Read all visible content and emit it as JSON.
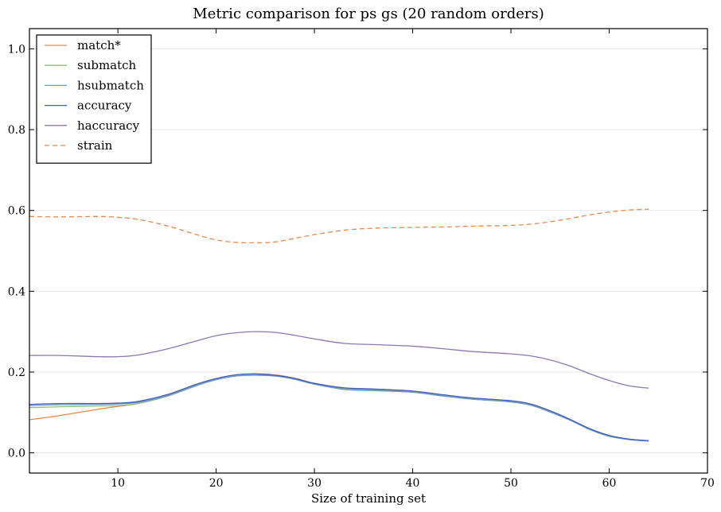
{
  "chart_data": {
    "type": "line",
    "title": "Metric comparison for ps gs (20 random orders)",
    "xlabel": "Size of training set",
    "ylabel": "",
    "xlim": [
      1,
      70
    ],
    "ylim": [
      -0.05,
      1.05
    ],
    "xticks": [
      10,
      20,
      30,
      40,
      50,
      60,
      70
    ],
    "yticks": [
      0.0,
      0.2,
      0.4,
      0.6,
      0.8,
      1.0
    ],
    "xtick_labels": [
      "10",
      "20",
      "30",
      "40",
      "50",
      "60",
      "70"
    ],
    "ytick_labels": [
      "0.0",
      "0.2",
      "0.4",
      "0.6",
      "0.8",
      "1.0"
    ],
    "grid": true,
    "legend_position": "top-left",
    "x": [
      1,
      4,
      8,
      10,
      12,
      15,
      18,
      20,
      22,
      24,
      26,
      28,
      30,
      33,
      36,
      40,
      43,
      46,
      50,
      52,
      54,
      56,
      58,
      60,
      62,
      64
    ],
    "series": [
      {
        "name": "match*",
        "color": "#e8894a",
        "style": "solid",
        "values": [
          0.082,
          0.092,
          0.108,
          0.115,
          0.122,
          0.142,
          0.168,
          0.183,
          0.193,
          0.196,
          0.193,
          0.185,
          0.172,
          0.16,
          0.157,
          0.152,
          0.143,
          0.135,
          0.128,
          0.12,
          0.103,
          0.083,
          0.06,
          0.043,
          0.034,
          0.03
        ]
      },
      {
        "name": "submatch",
        "color": "#8fbb7d",
        "style": "solid",
        "values": [
          0.112,
          0.114,
          0.116,
          0.117,
          0.122,
          0.14,
          0.166,
          0.181,
          0.19,
          0.192,
          0.19,
          0.182,
          0.17,
          0.158,
          0.155,
          0.15,
          0.141,
          0.133,
          0.126,
          0.118,
          0.101,
          0.081,
          0.058,
          0.041,
          0.033,
          0.029
        ]
      },
      {
        "name": "hsubmatch",
        "color": "#6b9cc9",
        "style": "solid",
        "values": [
          0.117,
          0.119,
          0.12,
          0.121,
          0.125,
          0.141,
          0.167,
          0.181,
          0.19,
          0.192,
          0.19,
          0.182,
          0.17,
          0.157,
          0.154,
          0.15,
          0.141,
          0.133,
          0.126,
          0.118,
          0.101,
          0.081,
          0.058,
          0.041,
          0.033,
          0.029
        ]
      },
      {
        "name": "accuracy",
        "color": "#3d5fc4",
        "style": "solid",
        "values": [
          0.12,
          0.122,
          0.122,
          0.123,
          0.127,
          0.144,
          0.17,
          0.184,
          0.193,
          0.195,
          0.192,
          0.184,
          0.172,
          0.161,
          0.158,
          0.153,
          0.144,
          0.136,
          0.129,
          0.121,
          0.104,
          0.083,
          0.06,
          0.043,
          0.034,
          0.03
        ]
      },
      {
        "name": "haccuracy",
        "color": "#8a78b0",
        "style": "solid",
        "values": [
          0.241,
          0.241,
          0.238,
          0.238,
          0.242,
          0.257,
          0.277,
          0.29,
          0.297,
          0.3,
          0.298,
          0.291,
          0.282,
          0.271,
          0.268,
          0.264,
          0.258,
          0.251,
          0.245,
          0.24,
          0.23,
          0.215,
          0.196,
          0.179,
          0.166,
          0.16
        ]
      },
      {
        "name": "strain",
        "color": "#e8894a",
        "style": "dashed",
        "values": [
          0.585,
          0.584,
          0.585,
          0.583,
          0.578,
          0.562,
          0.54,
          0.527,
          0.521,
          0.52,
          0.522,
          0.531,
          0.54,
          0.551,
          0.556,
          0.558,
          0.559,
          0.561,
          0.563,
          0.566,
          0.572,
          0.58,
          0.589,
          0.596,
          0.601,
          0.603
        ]
      }
    ]
  }
}
